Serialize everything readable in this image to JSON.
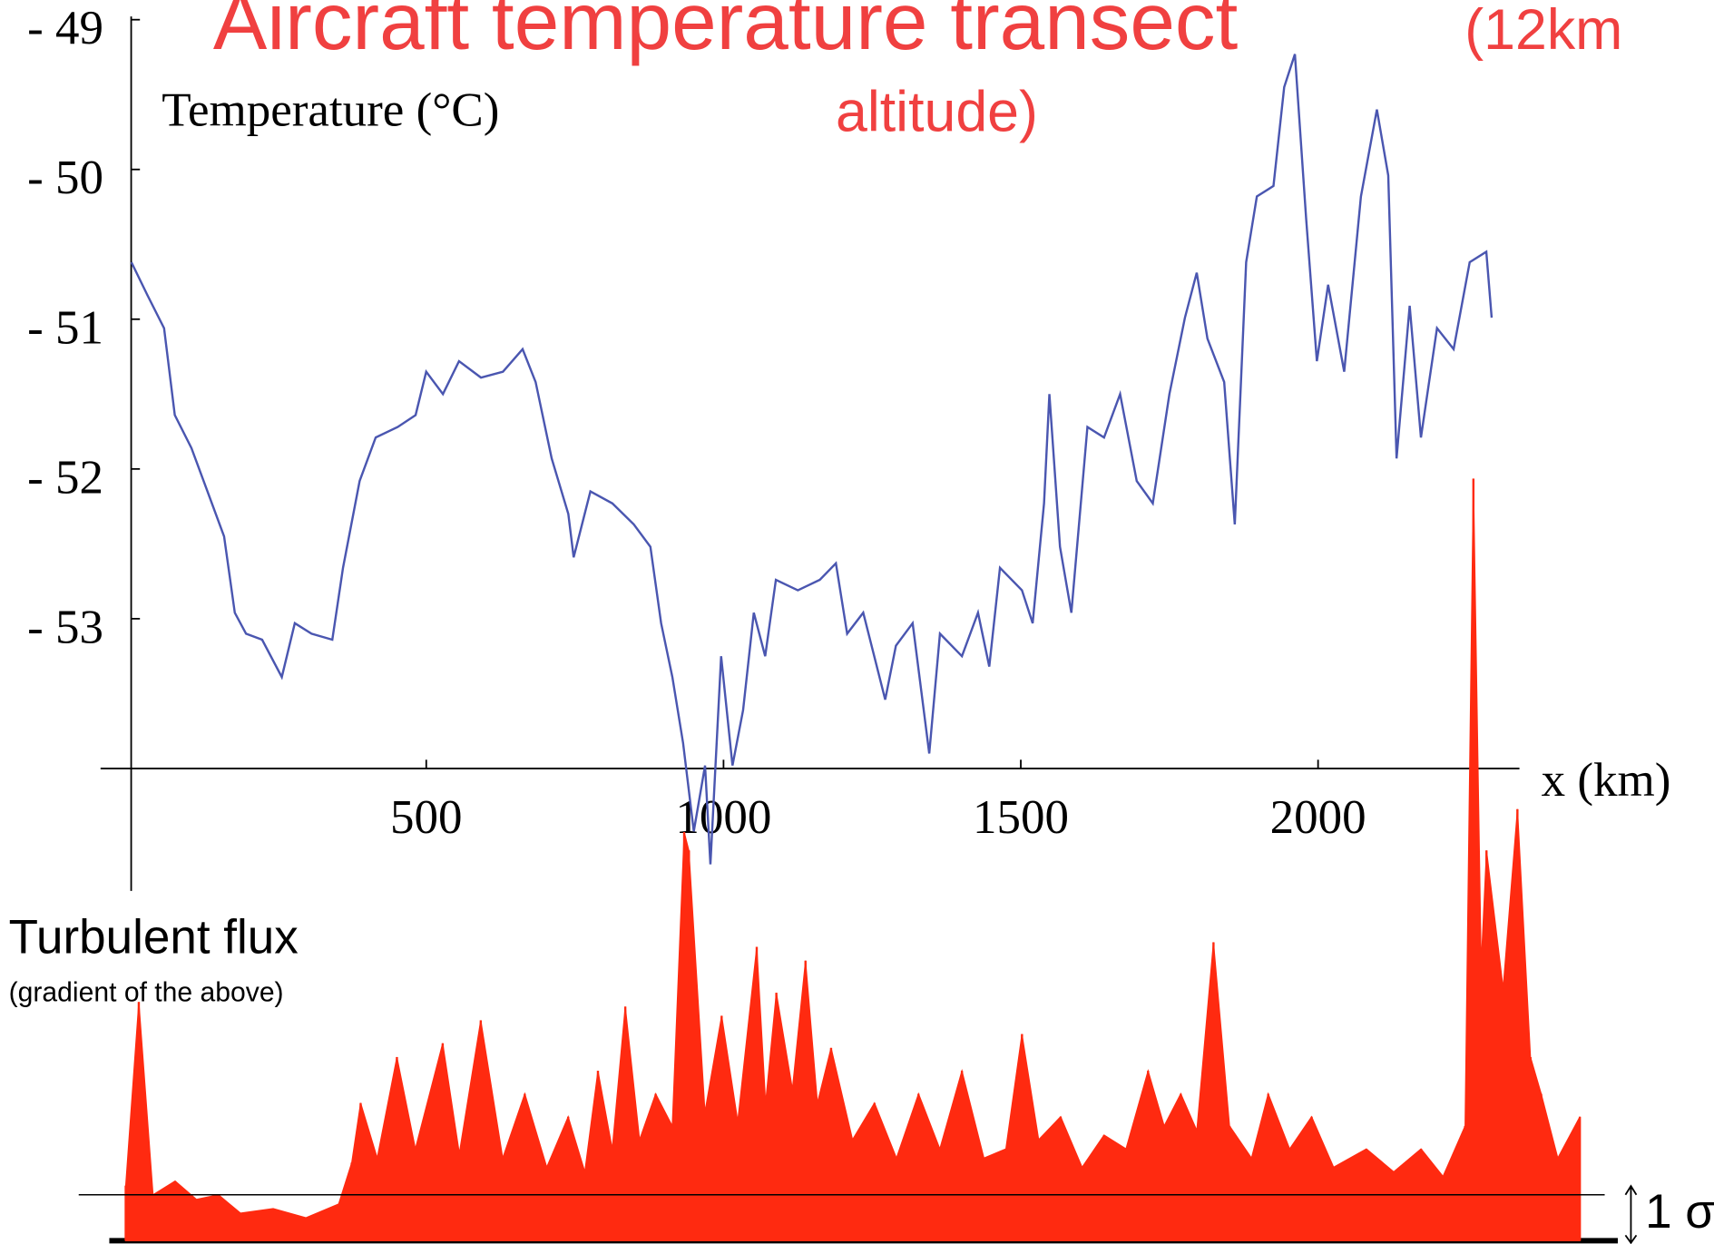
{
  "chart_data": [
    {
      "type": "line",
      "title": "Aircraft temperature transect",
      "subtitle_lines": [
        "(12km",
        "altitude)"
      ],
      "ylabel": "Temperature (°C)",
      "xlabel": "x (km)",
      "color": "#4a56b0",
      "xlim": [
        0,
        2335
      ],
      "ylim": [
        -54,
        -49
      ],
      "xticks": [
        500,
        1000,
        1500,
        2000
      ],
      "yticks": [
        {
          "value": -49,
          "label": "- 49"
        },
        {
          "value": -50,
          "label": "- 50"
        },
        {
          "value": -51,
          "label": "- 51"
        },
        {
          "value": -52,
          "label": "- 52"
        },
        {
          "value": -53,
          "label": "- 53"
        }
      ],
      "x": [
        4,
        31,
        59,
        77,
        105,
        132,
        160,
        178,
        197,
        224,
        257,
        279,
        307,
        342,
        360,
        388,
        415,
        452,
        482,
        500,
        528,
        555,
        592,
        629,
        662,
        684,
        711,
        739,
        748,
        776,
        813,
        849,
        877,
        895,
        914,
        932,
        950,
        969,
        978,
        996,
        1015,
        1033,
        1051,
        1070,
        1088,
        1125,
        1162,
        1189,
        1208,
        1235,
        1272,
        1290,
        1318,
        1346,
        1364,
        1401,
        1428,
        1447,
        1465,
        1502,
        1520,
        1539,
        1548,
        1566,
        1585,
        1612,
        1640,
        1667,
        1695,
        1722,
        1750,
        1776,
        1796,
        1814,
        1842,
        1860,
        1879,
        1897,
        1925,
        1943,
        1961,
        1980,
        1998,
        2017,
        2044,
        2072,
        2099,
        2118,
        2132,
        2154,
        2173,
        2200,
        2228,
        2255,
        2283,
        2292
      ],
      "values": [
        -50.62,
        -50.84,
        -51.06,
        -51.64,
        -51.86,
        -52.15,
        -52.45,
        -52.96,
        -53.1,
        -53.14,
        -53.39,
        -53.03,
        -53.1,
        -53.14,
        -52.66,
        -52.08,
        -51.79,
        -51.72,
        -51.64,
        -51.35,
        -51.5,
        -51.28,
        -51.39,
        -51.35,
        -51.2,
        -51.42,
        -51.93,
        -52.3,
        -52.59,
        -52.15,
        -52.23,
        -52.37,
        -52.52,
        -53.03,
        -53.39,
        -53.83,
        -54.42,
        -53.98,
        -54.64,
        -53.25,
        -53.98,
        -53.61,
        -52.96,
        -53.25,
        -52.74,
        -52.81,
        -52.74,
        -52.63,
        -53.1,
        -52.96,
        -53.54,
        -53.18,
        -53.03,
        -53.9,
        -53.1,
        -53.25,
        -52.96,
        -53.32,
        -52.66,
        -52.81,
        -53.03,
        -52.23,
        -51.5,
        -52.52,
        -52.96,
        -51.72,
        -51.79,
        -51.5,
        -52.08,
        -52.23,
        -51.5,
        -50.99,
        -50.69,
        -51.13,
        -51.42,
        -52.37,
        -50.62,
        -50.18,
        -50.11,
        -49.45,
        -49.23,
        -50.33,
        -51.28,
        -50.77,
        -51.35,
        -50.18,
        -49.6,
        -50.04,
        -51.93,
        -50.91,
        -51.79,
        -51.06,
        -51.2,
        -50.62,
        -50.55,
        -50.99
      ]
    },
    {
      "type": "spikes",
      "title": "Turbulent flux",
      "subtitle": "(gradient of the above)",
      "color": "#ff2a10",
      "xlim": [
        0,
        2450
      ],
      "ylim": [
        0,
        17
      ],
      "reference": {
        "value": 1,
        "label": "1 σ"
      },
      "x": [
        0,
        22,
        46,
        83,
        119,
        156,
        193,
        248,
        303,
        358,
        380,
        395,
        423,
        456,
        487,
        533,
        561,
        597,
        634,
        671,
        708,
        744,
        772,
        794,
        818,
        840,
        864,
        891,
        919,
        939,
        947,
        974,
        1002,
        1029,
        1061,
        1076,
        1094,
        1121,
        1143,
        1163,
        1186,
        1222,
        1259,
        1296,
        1333,
        1369,
        1406,
        1443,
        1480,
        1507,
        1535,
        1572,
        1608,
        1645,
        1682,
        1719,
        1746,
        1774,
        1801,
        1829,
        1856,
        1893,
        1921,
        1957,
        1994,
        2031,
        2086,
        2132,
        2178,
        2215,
        2252,
        2266,
        2279,
        2288,
        2316,
        2340,
        2362,
        2380,
        2408,
        2445
      ],
      "values": [
        1.2,
        5.2,
        1.0,
        1.3,
        0.9,
        1.0,
        0.6,
        0.7,
        0.5,
        0.8,
        1.7,
        3.0,
        1.8,
        4.0,
        2.0,
        4.3,
        1.9,
        4.8,
        1.8,
        3.2,
        1.6,
        2.7,
        1.5,
        3.7,
        2.0,
        5.1,
        2.2,
        3.2,
        2.5,
        8.9,
        8.5,
        2.8,
        4.9,
        2.6,
        6.4,
        3.0,
        5.4,
        3.3,
        6.1,
        3.0,
        4.2,
        2.2,
        3.0,
        1.8,
        3.2,
        2.0,
        3.7,
        1.8,
        2.0,
        4.5,
        2.2,
        2.7,
        1.6,
        2.3,
        2.0,
        3.7,
        2.5,
        3.2,
        2.4,
        6.5,
        2.5,
        1.8,
        3.2,
        2.0,
        2.7,
        1.6,
        2.0,
        1.5,
        2.0,
        1.4,
        2.5,
        16.6,
        6.0,
        8.5,
        5.5,
        9.4,
        4.0,
        3.2,
        1.8,
        2.7
      ]
    }
  ]
}
